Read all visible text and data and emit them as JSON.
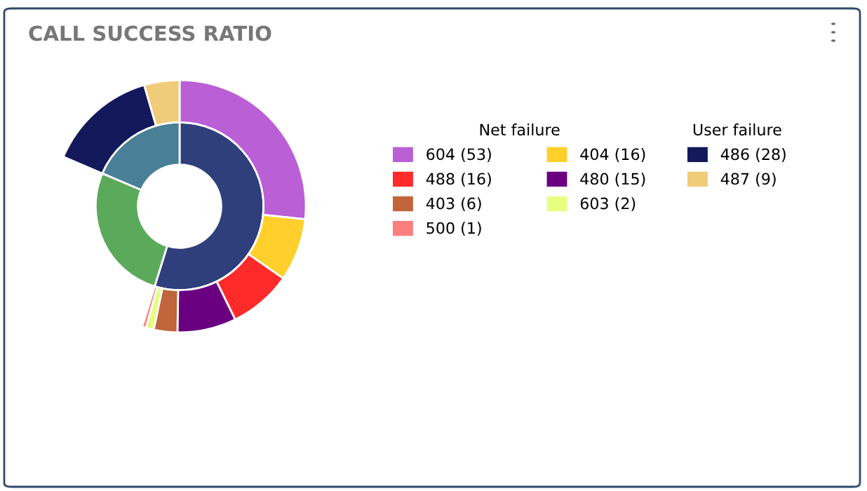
{
  "chart_data": {
    "type": "donut",
    "title": "CALL SUCCESS RATIO",
    "legend": "right",
    "annotations": [
      "Net failure",
      "User failure"
    ],
    "categories": [
      "604 (53)",
      "404 (16)",
      "488 (16)",
      "480 (15)",
      "403 (6)",
      "603 (2)",
      "500 (1)",
      null,
      "486 (28)",
      "487 (9)"
    ],
    "series": [
      {
        "values": [
          54.8,
          null,
          null,
          null,
          null,
          null,
          null,
          26.6,
          18.6,
          null
        ],
        "colors": [
          "#2e3f7c",
          null,
          null,
          null,
          null,
          null,
          null,
          "#5baa5b",
          "#4a7f98",
          null
        ]
      },
      {
        "values": [
          53,
          16,
          16,
          15,
          6,
          2,
          1,
          null,
          28,
          9
        ],
        "colors": [
          "#ba5fd6",
          "#ffd02c",
          "#ff2a2a",
          "#6a0080",
          "#c0663a",
          "#e6ff80",
          "#ff7f7f",
          null,
          "#14195c",
          "#f0cc7a"
        ]
      }
    ]
  }
}
